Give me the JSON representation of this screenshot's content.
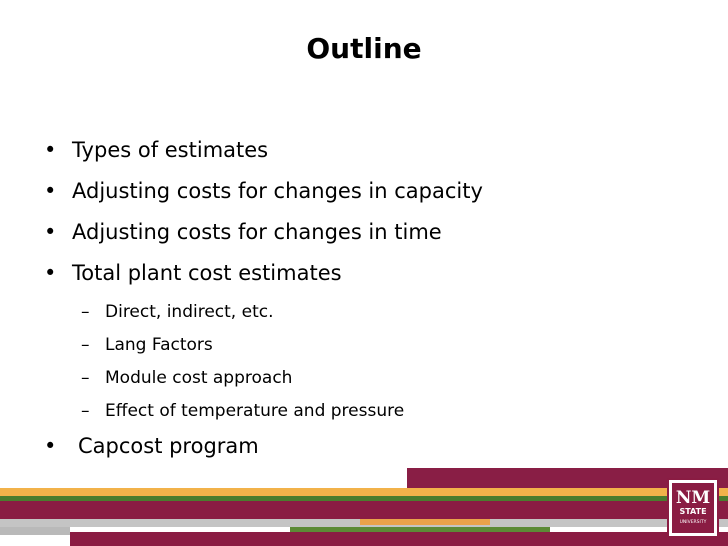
{
  "slide": {
    "title": "Outline",
    "bullets": [
      "Types of estimates",
      "Adjusting costs for changes in capacity",
      "Adjusting costs for changes in time",
      "Total plant cost estimates"
    ],
    "sub_bullets": [
      "Direct, indirect, etc.",
      "Lang Factors",
      "Module cost approach",
      "Effect of temperature and pressure"
    ],
    "last_bullet": "Capcost program",
    "bullet_symbol": "•",
    "sub_bullet_symbol": "–"
  },
  "footer": {
    "logo_name": "nm-state-university-logo",
    "logo_text_lines": [
      "NM",
      "STATE",
      "UNIVERSITY"
    ],
    "colors": {
      "maroon": "#8a1c43",
      "orange": "#f2b24a",
      "green": "#4a7c2e",
      "gray": "#c4c4c4"
    }
  }
}
